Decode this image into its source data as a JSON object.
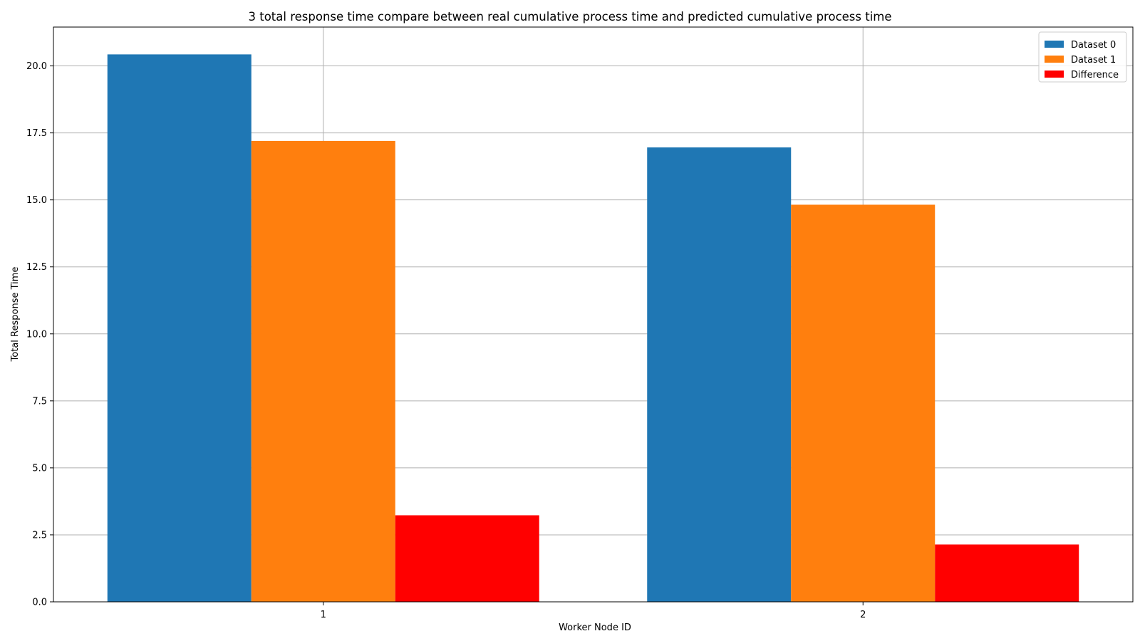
{
  "chart_data": {
    "type": "bar",
    "title": "3 total response time compare between real cumulative process time and predicted cumulative process time",
    "xlabel": "Worker Node ID",
    "ylabel": "Total Response Time",
    "categories": [
      "1",
      "2"
    ],
    "series": [
      {
        "name": "Dataset 0",
        "values": [
          20.43,
          16.96
        ],
        "color": "#1f77b4"
      },
      {
        "name": "Dataset 1",
        "values": [
          17.2,
          14.82
        ],
        "color": "#ff7f0e"
      },
      {
        "name": "Difference",
        "values": [
          3.23,
          2.14
        ],
        "color": "#ff0000"
      }
    ],
    "ylim": [
      0,
      21.45
    ],
    "yticks": [
      0.0,
      2.5,
      5.0,
      7.5,
      10.0,
      12.5,
      15.0,
      17.5,
      20.0
    ],
    "ytick_labels": [
      "0.0",
      "2.5",
      "5.0",
      "7.5",
      "10.0",
      "12.5",
      "15.0",
      "17.5",
      "20.0"
    ],
    "grid": true,
    "legend_position": "top-right"
  }
}
